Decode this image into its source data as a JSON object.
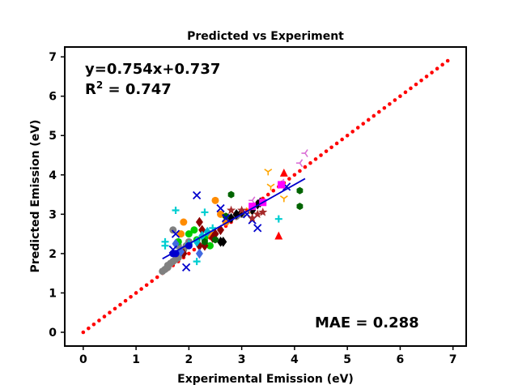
{
  "chart_data": {
    "type": "scatter",
    "title": "Predicted vs Experiment",
    "xlabel": "Experimental Emission (eV)",
    "ylabel": "Predicted Emission (eV)",
    "xlim": [
      -0.35,
      7.25
    ],
    "ylim": [
      -0.35,
      7.25
    ],
    "xticks": [
      0,
      1,
      2,
      3,
      4,
      5,
      6,
      7
    ],
    "yticks": [
      0,
      1,
      2,
      3,
      4,
      5,
      6,
      7
    ],
    "grid": false,
    "annotations": {
      "equation": "y=0.754x+0.737",
      "r2_prefix": "R",
      "r2_exp": "2",
      "r2_suffix": " = 0.747",
      "mae": "MAE = 0.288"
    },
    "identity_line": {
      "color": "#ff0000",
      "x_start": 0.0,
      "x_end": 6.9,
      "step": 0.1
    },
    "fit_line": {
      "color": "#0000cc",
      "slope": 0.754,
      "intercept": 0.737,
      "x_start": 1.5,
      "x_end": 4.2
    },
    "series": [
      {
        "marker": "circle",
        "color": "#808080",
        "points": [
          [
            1.5,
            1.55
          ],
          [
            1.55,
            1.6
          ],
          [
            1.6,
            1.7
          ],
          [
            1.65,
            1.75
          ],
          [
            1.7,
            1.8
          ],
          [
            1.75,
            1.85
          ],
          [
            1.8,
            1.9
          ],
          [
            1.85,
            2.0
          ],
          [
            1.9,
            2.1
          ],
          [
            1.95,
            2.2
          ],
          [
            2.0,
            2.3
          ],
          [
            1.7,
            2.6
          ],
          [
            1.8,
            2.2
          ],
          [
            2.9,
            2.95
          ],
          [
            3.0,
            3.0
          ],
          [
            1.6,
            1.65
          ]
        ]
      },
      {
        "marker": "circle",
        "color": "#ff8c00",
        "points": [
          [
            1.9,
            2.8
          ],
          [
            2.5,
            3.35
          ],
          [
            2.4,
            2.5
          ],
          [
            2.6,
            3.0
          ],
          [
            2.7,
            2.8
          ],
          [
            1.85,
            2.5
          ]
        ]
      },
      {
        "marker": "circle",
        "color": "#00cc00",
        "points": [
          [
            2.0,
            2.5
          ],
          [
            2.1,
            2.6
          ],
          [
            2.3,
            2.4
          ],
          [
            2.4,
            2.2
          ],
          [
            1.8,
            2.3
          ],
          [
            2.15,
            2.35
          ]
        ]
      },
      {
        "marker": "diamond",
        "color": "#8b0000",
        "points": [
          [
            2.2,
            2.8
          ],
          [
            2.25,
            2.6
          ],
          [
            2.3,
            2.2
          ],
          [
            2.5,
            2.5
          ],
          [
            2.6,
            2.6
          ],
          [
            2.2,
            2.2
          ],
          [
            1.9,
            2.0
          ],
          [
            2.45,
            2.4
          ]
        ]
      },
      {
        "marker": "diamond",
        "color": "#000000",
        "points": [
          [
            2.6,
            2.3
          ],
          [
            2.65,
            2.3
          ],
          [
            2.8,
            2.9
          ],
          [
            2.9,
            3.0
          ],
          [
            3.0,
            3.05
          ],
          [
            3.2,
            3.1
          ],
          [
            3.3,
            3.25
          ],
          [
            3.35,
            3.3
          ]
        ]
      },
      {
        "marker": "diamond",
        "color": "#4169e1",
        "points": [
          [
            1.75,
            2.25
          ],
          [
            1.85,
            2.05
          ],
          [
            2.2,
            2.0
          ]
        ]
      },
      {
        "marker": "diamond",
        "color": "#00bcd4",
        "points": [
          [
            2.25,
            2.45
          ],
          [
            2.35,
            2.55
          ],
          [
            2.15,
            2.3
          ]
        ]
      },
      {
        "marker": "hexagon",
        "color": "#006400",
        "points": [
          [
            2.8,
            3.5
          ],
          [
            4.1,
            3.6
          ],
          [
            4.1,
            3.2
          ],
          [
            2.3,
            2.3
          ],
          [
            2.5,
            2.35
          ],
          [
            2.7,
            2.95
          ]
        ]
      },
      {
        "marker": "x",
        "color": "#0000cd",
        "points": [
          [
            2.15,
            3.48
          ],
          [
            2.6,
            3.15
          ],
          [
            3.3,
            2.65
          ],
          [
            3.2,
            2.85
          ],
          [
            1.95,
            1.65
          ],
          [
            1.7,
            2.1
          ],
          [
            3.85,
            3.7
          ],
          [
            1.75,
            2.5
          ],
          [
            2.7,
            2.9
          ],
          [
            3.1,
            3.0
          ]
        ]
      },
      {
        "marker": "plus",
        "color": "#00ced1",
        "points": [
          [
            1.75,
            3.1
          ],
          [
            2.3,
            3.05
          ],
          [
            3.7,
            2.88
          ],
          [
            1.55,
            2.3
          ],
          [
            1.55,
            2.2
          ],
          [
            2.15,
            1.8
          ],
          [
            2.45,
            2.65
          ],
          [
            2.0,
            2.25
          ]
        ]
      },
      {
        "marker": "star",
        "color": "#a52a2a",
        "points": [
          [
            3.4,
            3.05
          ],
          [
            3.2,
            2.9
          ],
          [
            2.8,
            3.1
          ],
          [
            3.0,
            3.1
          ],
          [
            3.3,
            3.0
          ]
        ]
      },
      {
        "marker": "triangle",
        "color": "#ff0000",
        "points": [
          [
            3.7,
            2.45
          ],
          [
            3.8,
            4.05
          ],
          [
            3.75,
            3.75
          ]
        ]
      },
      {
        "marker": "tri_down",
        "color": "#ffa500",
        "points": [
          [
            3.5,
            4.08
          ],
          [
            3.8,
            3.4
          ],
          [
            3.15,
            3.1
          ],
          [
            3.55,
            3.7
          ]
        ]
      },
      {
        "marker": "tri_left",
        "color": "#da70d6",
        "points": [
          [
            4.2,
            4.55
          ],
          [
            4.1,
            4.3
          ],
          [
            3.75,
            3.8
          ],
          [
            3.2,
            3.35
          ]
        ]
      },
      {
        "marker": "square",
        "color": "#ff00ff",
        "points": [
          [
            3.2,
            3.2
          ],
          [
            3.4,
            3.3
          ],
          [
            3.75,
            3.75
          ]
        ]
      },
      {
        "marker": "circle",
        "color": "#0000cd",
        "points": [
          [
            1.7,
            2.0
          ],
          [
            1.75,
            2.0
          ],
          [
            2.0,
            2.2
          ]
        ]
      }
    ]
  }
}
